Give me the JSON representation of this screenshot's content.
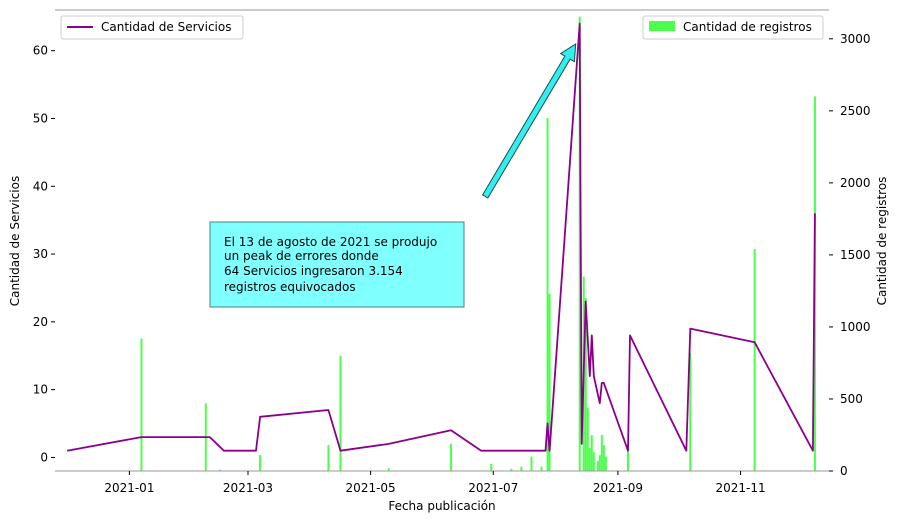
{
  "chart_data": {
    "type": "line+bar",
    "title": "",
    "xlabel": "Fecha publicación",
    "ylabel_left": "Cantidad de Servicios",
    "ylabel_right": "Cantidad de registros",
    "x_ticks": [
      "2021-01",
      "2021-03",
      "2021-05",
      "2021-07",
      "2021-09",
      "2021-11"
    ],
    "x_range": [
      "2020-11-25",
      "2021-12-15"
    ],
    "ylim_left": [
      -2,
      66
    ],
    "ylim_right": [
      0,
      3200
    ],
    "yticks_left": [
      0,
      10,
      20,
      30,
      40,
      50,
      60
    ],
    "yticks_right": [
      0,
      500,
      1000,
      1500,
      2000,
      2500,
      3000
    ],
    "grid": false,
    "legend_left": {
      "label": "Cantidad de Servicios",
      "color": "#8b008b",
      "placement": "upper-left"
    },
    "legend_right": {
      "label": "Cantidad de registros",
      "color": "#4dff4d",
      "placement": "upper-right"
    },
    "line_series": {
      "name": "Cantidad de Servicios",
      "color": "#8b008b",
      "points": [
        [
          "2020-12-01",
          1
        ],
        [
          "2021-01-07",
          3
        ],
        [
          "2021-02-10",
          3
        ],
        [
          "2021-02-17",
          1
        ],
        [
          "2021-03-05",
          1
        ],
        [
          "2021-03-07",
          6
        ],
        [
          "2021-04-10",
          7
        ],
        [
          "2021-04-16",
          1
        ],
        [
          "2021-05-10",
          2
        ],
        [
          "2021-06-10",
          4
        ],
        [
          "2021-06-25",
          1
        ],
        [
          "2021-07-27",
          1
        ],
        [
          "2021-07-28",
          5
        ],
        [
          "2021-07-29",
          1
        ],
        [
          "2021-08-13",
          64
        ],
        [
          "2021-08-14",
          2
        ],
        [
          "2021-08-16",
          23
        ],
        [
          "2021-08-18",
          12
        ],
        [
          "2021-08-19",
          18
        ],
        [
          "2021-08-20",
          12
        ],
        [
          "2021-08-23",
          8
        ],
        [
          "2021-08-24",
          11
        ],
        [
          "2021-08-25",
          11
        ],
        [
          "2021-09-06",
          1
        ],
        [
          "2021-09-07",
          18
        ],
        [
          "2021-10-05",
          1
        ],
        [
          "2021-10-07",
          19
        ],
        [
          "2021-11-08",
          17
        ],
        [
          "2021-12-07",
          1
        ],
        [
          "2021-12-08",
          36
        ]
      ]
    },
    "bar_series": {
      "name": "Cantidad de registros",
      "color": "#4dff4d",
      "points": [
        [
          "2021-01-07",
          920
        ],
        [
          "2021-02-08",
          470
        ],
        [
          "2021-02-15",
          10
        ],
        [
          "2021-03-07",
          110
        ],
        [
          "2021-04-10",
          180
        ],
        [
          "2021-04-16",
          800
        ],
        [
          "2021-05-10",
          20
        ],
        [
          "2021-06-10",
          190
        ],
        [
          "2021-06-30",
          50
        ],
        [
          "2021-07-10",
          15
        ],
        [
          "2021-07-15",
          30
        ],
        [
          "2021-07-20",
          100
        ],
        [
          "2021-07-25",
          30
        ],
        [
          "2021-07-28",
          2450
        ],
        [
          "2021-07-29",
          1230
        ],
        [
          "2021-08-13",
          3154
        ],
        [
          "2021-08-15",
          1350
        ],
        [
          "2021-08-16",
          1200
        ],
        [
          "2021-08-17",
          440
        ],
        [
          "2021-08-18",
          160
        ],
        [
          "2021-08-19",
          250
        ],
        [
          "2021-08-20",
          130
        ],
        [
          "2021-08-22",
          70
        ],
        [
          "2021-08-23",
          110
        ],
        [
          "2021-08-24",
          250
        ],
        [
          "2021-08-25",
          180
        ],
        [
          "2021-08-26",
          100
        ],
        [
          "2021-09-06",
          180
        ],
        [
          "2021-10-07",
          820
        ],
        [
          "2021-11-08",
          1540
        ],
        [
          "2021-12-08",
          2600
        ]
      ]
    },
    "annotation": {
      "lines": [
        "El 13 de agosto de 2021 se produjo",
        "un peak de errores donde",
        "64 Servicios ingresaron 3.154",
        "registros equivocados"
      ],
      "box_color": "#80ffff",
      "arrow_color": "#33eeee",
      "arrow_from": [
        "2021-06-27",
        38.5
      ],
      "arrow_to": [
        "2021-08-11",
        61
      ]
    }
  }
}
